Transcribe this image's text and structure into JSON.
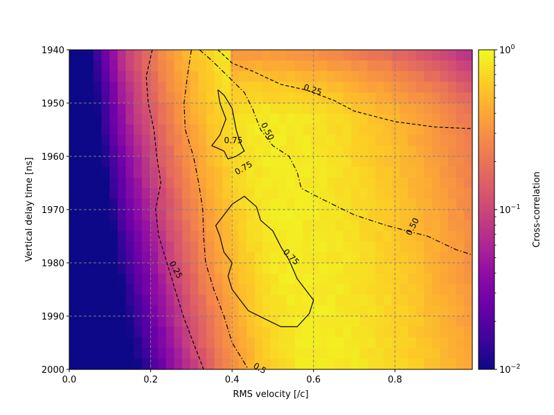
{
  "chart_data": {
    "type": "heatmap",
    "xlabel": "RMS velocity [/c]",
    "ylabel": "Vertical delay time [ns]",
    "colorbar_label": "Cross-correlation",
    "colormap": "plasma",
    "color_scale": "log",
    "color_range": [
      0.01,
      1
    ],
    "colorbar_ticks": [
      {
        "value": 0.01,
        "label": "10",
        "exp": "−2"
      },
      {
        "value": 0.1,
        "label": "10",
        "exp": "−1"
      },
      {
        "value": 1,
        "label": "10",
        "exp": "0"
      }
    ],
    "x_range": [
      0.0,
      0.99
    ],
    "y_range": [
      1940,
      2000
    ],
    "y_inverted": true,
    "x_ticks": [
      "0.0",
      "0.2",
      "0.4",
      "0.6",
      "0.8"
    ],
    "y_ticks": [
      "1940",
      "1950",
      "1960",
      "1970",
      "1980",
      "1990",
      "2000"
    ],
    "grid": true,
    "nx": 50,
    "ny": 30,
    "contour_levels": [
      0.25,
      0.5,
      0.75
    ],
    "contour_labels": [
      {
        "text": "0.25",
        "x": 0.598,
        "y": 1947.5,
        "angle": 18
      },
      {
        "text": "0.50",
        "x": 0.487,
        "y": 1955.3,
        "angle": 62
      },
      {
        "text": "0.75",
        "x": 0.403,
        "y": 1957.0,
        "angle": 0
      },
      {
        "text": "0.75",
        "x": 0.428,
        "y": 1962.2,
        "angle": -30
      },
      {
        "text": "0.50",
        "x": 0.843,
        "y": 1973.2,
        "angle": -62
      },
      {
        "text": "0.75",
        "x": 0.545,
        "y": 1978.9,
        "angle": 45
      },
      {
        "text": "0.25",
        "x": 0.262,
        "y": 1981.3,
        "angle": 62
      },
      {
        "text": "0.5",
        "x": 0.468,
        "y": 1999.8,
        "angle": 30
      }
    ],
    "contours": [
      {
        "level": 0.25,
        "style": "dashed",
        "points": [
          [
            0.204,
            1940.0
          ],
          [
            0.189,
            1945.0
          ],
          [
            0.194,
            1950.0
          ],
          [
            0.208,
            1955.0
          ],
          [
            0.215,
            1960.0
          ],
          [
            0.225,
            1965.0
          ],
          [
            0.212,
            1970.0
          ],
          [
            0.22,
            1975.0
          ],
          [
            0.24,
            1980.0
          ],
          [
            0.26,
            1985.0
          ],
          [
            0.28,
            1990.0
          ],
          [
            0.305,
            1995.0
          ],
          [
            0.33,
            2000.0
          ]
        ]
      },
      {
        "level": 0.25,
        "style": "dashed",
        "points": [
          [
            0.365,
            1940.0
          ],
          [
            0.4,
            1942.5
          ],
          [
            0.45,
            1944.0
          ],
          [
            0.52,
            1946.5
          ],
          [
            0.58,
            1947.5
          ],
          [
            0.65,
            1949.5
          ],
          [
            0.7,
            1951.5
          ],
          [
            0.8,
            1953.5
          ],
          [
            0.9,
            1954.5
          ],
          [
            0.99,
            1954.8
          ]
        ]
      },
      {
        "level": 0.5,
        "style": "dashdot",
        "points": [
          [
            0.3,
            1940.0
          ],
          [
            0.29,
            1945.0
          ],
          [
            0.282,
            1950.0
          ],
          [
            0.285,
            1955.0
          ],
          [
            0.305,
            1960.0
          ],
          [
            0.318,
            1965.0
          ],
          [
            0.328,
            1970.0
          ],
          [
            0.33,
            1975.0
          ],
          [
            0.335,
            1980.0
          ],
          [
            0.355,
            1985.0
          ],
          [
            0.38,
            1990.0
          ],
          [
            0.4,
            1995.0
          ],
          [
            0.44,
            2000.0
          ]
        ]
      },
      {
        "level": 0.5,
        "style": "dashdot",
        "points": [
          [
            0.32,
            1940.0
          ],
          [
            0.35,
            1942.0
          ],
          [
            0.39,
            1945.0
          ],
          [
            0.43,
            1948.0
          ],
          [
            0.45,
            1951.0
          ],
          [
            0.47,
            1955.0
          ],
          [
            0.5,
            1958.0
          ],
          [
            0.54,
            1960.0
          ],
          [
            0.56,
            1963.0
          ],
          [
            0.57,
            1966.0
          ],
          [
            0.62,
            1968.0
          ],
          [
            0.7,
            1971.0
          ],
          [
            0.78,
            1973.0
          ],
          [
            0.88,
            1975.0
          ],
          [
            0.95,
            1977.5
          ],
          [
            0.99,
            1978.5
          ]
        ]
      },
      {
        "level": 0.75,
        "style": "solid",
        "points": [
          [
            0.365,
            1947.5
          ],
          [
            0.38,
            1948.5
          ],
          [
            0.4,
            1951.0
          ],
          [
            0.41,
            1955.0
          ],
          [
            0.42,
            1957.5
          ],
          [
            0.43,
            1959.0
          ],
          [
            0.41,
            1960.0
          ],
          [
            0.39,
            1960.5
          ],
          [
            0.38,
            1959.0
          ],
          [
            0.35,
            1958.0
          ],
          [
            0.37,
            1956.0
          ],
          [
            0.385,
            1953.0
          ],
          [
            0.37,
            1950.0
          ],
          [
            0.365,
            1947.5
          ]
        ]
      },
      {
        "level": 0.75,
        "style": "solid",
        "points": [
          [
            0.4,
            1969.0
          ],
          [
            0.43,
            1967.5
          ],
          [
            0.46,
            1969.5
          ],
          [
            0.47,
            1972.0
          ],
          [
            0.5,
            1974.0
          ],
          [
            0.52,
            1977.0
          ],
          [
            0.54,
            1979.5
          ],
          [
            0.56,
            1983.0
          ],
          [
            0.6,
            1987.0
          ],
          [
            0.59,
            1989.5
          ],
          [
            0.56,
            1992.0
          ],
          [
            0.52,
            1992.0
          ],
          [
            0.48,
            1990.5
          ],
          [
            0.44,
            1989.0
          ],
          [
            0.42,
            1987.0
          ],
          [
            0.4,
            1985.0
          ],
          [
            0.39,
            1982.5
          ],
          [
            0.4,
            1980.0
          ],
          [
            0.38,
            1978.0
          ],
          [
            0.37,
            1975.0
          ],
          [
            0.36,
            1973.0
          ],
          [
            0.38,
            1971.0
          ],
          [
            0.4,
            1969.0
          ]
        ]
      }
    ]
  }
}
